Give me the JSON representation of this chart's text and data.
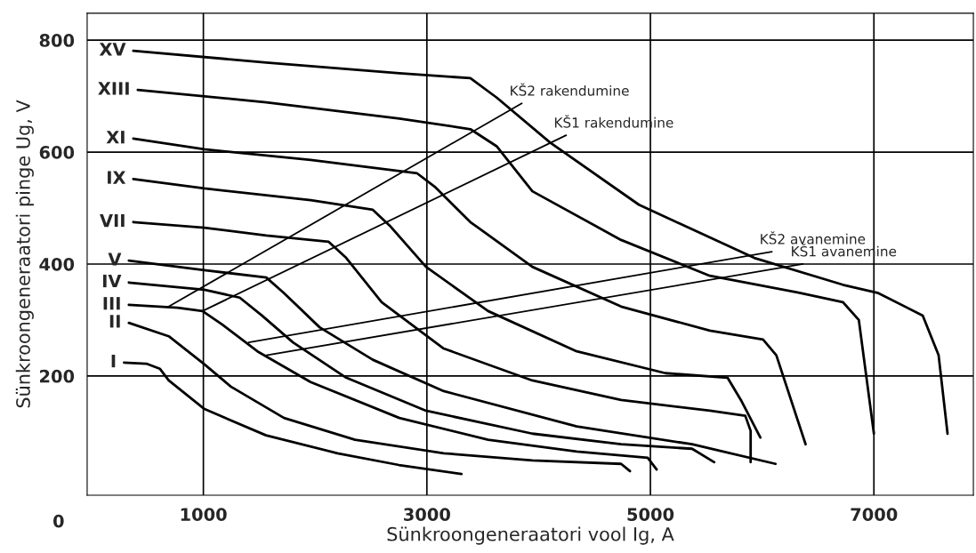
{
  "chart_data": {
    "type": "line",
    "xlabel": "Sünkroongeneraatori vool Ig, A",
    "ylabel": "Sünkroongeneraatori pinge Ug, V",
    "xlim": [
      -40,
      7890
    ],
    "ylim": [
      -13,
      848
    ],
    "xticks": [
      1000,
      3000,
      5000,
      7000
    ],
    "yticks": [
      200,
      400,
      600,
      800
    ],
    "grid": true,
    "legend": false,
    "marker": "none",
    "line_style": "solid",
    "annotations": [
      "0"
    ],
    "series": [
      {
        "name": "I",
        "color": "#000000",
        "x": [
          290,
          490,
          610,
          690,
          1010,
          1560,
          2200,
          2750,
          3310
        ],
        "values": [
          224,
          222,
          213,
          192,
          141,
          94,
          62,
          41,
          25
        ]
      },
      {
        "name": "II",
        "color": "#000000",
        "x": [
          333,
          690,
          1008,
          1246,
          1722,
          2357,
          3151,
          3944,
          4738,
          4817
        ],
        "values": [
          295,
          271,
          221,
          181,
          125,
          86,
          62,
          49,
          43,
          30
        ]
      },
      {
        "name": "III",
        "color": "#000000",
        "x": [
          333,
          770,
          992,
          1167,
          1484,
          1960,
          2754,
          3548,
          4341,
          4976,
          5056
        ],
        "values": [
          327,
          322,
          316,
          292,
          244,
          189,
          125,
          86,
          65,
          54,
          33
        ]
      },
      {
        "name": "IV",
        "color": "#000000",
        "x": [
          333,
          1008,
          1325,
          1524,
          1802,
          2278,
          2992,
          3944,
          4738,
          5373,
          5571
        ],
        "values": [
          367,
          354,
          340,
          308,
          260,
          197,
          138,
          97,
          78,
          70,
          46
        ]
      },
      {
        "name": "V",
        "color": "#000000",
        "x": [
          333,
          1008,
          1563,
          1722,
          2040,
          2516,
          3151,
          4341,
          5373,
          6120
        ],
        "values": [
          406,
          389,
          376,
          348,
          287,
          229,
          173,
          110,
          78,
          43
        ]
      },
      {
        "name": "VII",
        "color": "#000000",
        "x": [
          373,
          1008,
          1563,
          2119,
          2278,
          2595,
          3151,
          3944,
          4738,
          5532,
          5849,
          5897,
          5897
        ],
        "values": [
          475,
          465,
          451,
          440,
          411,
          332,
          249,
          192,
          157,
          138,
          129,
          102,
          46
        ]
      },
      {
        "name": "IX",
        "color": "#000000",
        "x": [
          373,
          1008,
          1960,
          2516,
          2675,
          2992,
          3548,
          4341,
          5135,
          5690,
          5810,
          5984
        ],
        "values": [
          552,
          535,
          514,
          497,
          467,
          395,
          316,
          244,
          205,
          197,
          157,
          90
        ]
      },
      {
        "name": "XI",
        "color": "#000000",
        "x": [
          373,
          1008,
          1960,
          2913,
          3071,
          3389,
          3944,
          4738,
          5532,
          6008,
          6127,
          6389
        ],
        "values": [
          624,
          605,
          586,
          562,
          538,
          475,
          395,
          324,
          281,
          265,
          237,
          78
        ]
      },
      {
        "name": "XIII",
        "color": "#000000",
        "x": [
          413,
          1563,
          2754,
          3389,
          3627,
          3944,
          4738,
          5532,
          6325,
          6722,
          6865,
          7000
        ],
        "values": [
          711,
          689,
          660,
          641,
          610,
          530,
          443,
          379,
          349,
          332,
          300,
          97
        ]
      },
      {
        "name": "XV",
        "color": "#000000",
        "x": [
          373,
          1563,
          2754,
          3389,
          3627,
          4103,
          4897,
          5929,
          6722,
          7040,
          7437,
          7579,
          7659
        ],
        "values": [
          781,
          760,
          741,
          732,
          697,
          617,
          506,
          411,
          363,
          348,
          308,
          237,
          97
        ]
      },
      {
        "name": "KŠ2 rakendumine",
        "color": "#000000",
        "x": [
          690,
          3849
        ],
        "values": [
          324,
          687
        ]
      },
      {
        "name": "KŠ1 rakendumine",
        "color": "#000000",
        "x": [
          992,
          4246
        ],
        "values": [
          316,
          630
        ]
      },
      {
        "name": "KŠ2 avanemine",
        "color": "#000000",
        "x": [
          1405,
          6087
        ],
        "values": [
          260,
          422
        ]
      },
      {
        "name": "KŠ1 avanemine",
        "color": "#000000",
        "x": [
          1563,
          6365
        ],
        "values": [
          237,
          400
        ]
      }
    ]
  }
}
